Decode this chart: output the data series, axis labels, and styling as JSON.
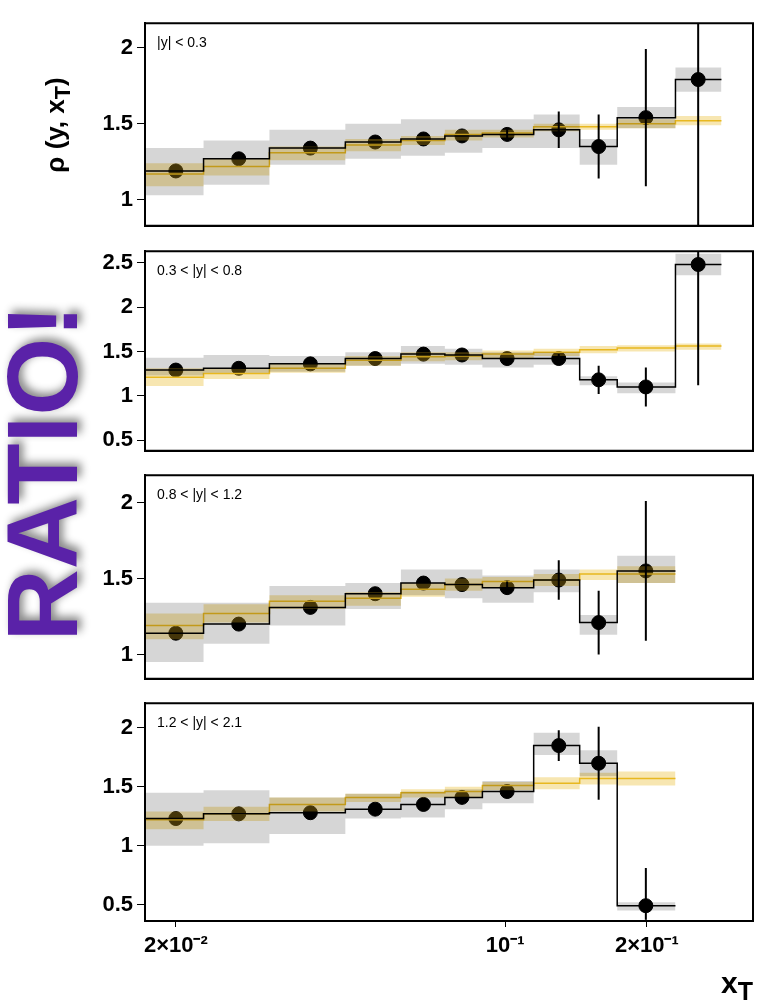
{
  "chart_data": [
    {
      "type": "scatter",
      "ylabel": "ρ (y, x$_{T}$)",
      "annotations": [
        "|y| < 0.3"
      ],
      "log": "x",
      "xlim": [
        0.0172,
        0.336
      ],
      "xticks": [
        {
          "value": 0.02,
          "label": null
        },
        {
          "value": 0.1,
          "label": null
        },
        {
          "value": 0.2,
          "label": null
        }
      ],
      "ylim": [
        0.83,
        2.16
      ],
      "yticks": [
        1,
        1.5,
        2
      ],
      "tick_labels": "y",
      "x": [
        0.02,
        0.0272,
        0.0386,
        0.053,
        0.0671,
        0.081,
        0.101,
        0.13,
        0.158,
        0.199,
        0.257
      ],
      "series": [
        {
          "type": "step",
          "color": "#000000",
          "x": [
            0.0172,
            0.0229,
            0.0316,
            0.0458,
            0.0601,
            0.0745,
            0.0895,
            0.115,
            0.144,
            0.173,
            0.23,
            0.288
          ],
          "values": [
            1.19,
            1.27,
            1.34,
            1.38,
            1.4,
            1.42,
            1.43,
            1.46,
            1.35,
            1.54,
            1.79,
            1.79
          ],
          "lower": [
            1.03,
            1.1,
            1.23,
            1.27,
            1.29,
            1.31,
            1.34,
            1.34,
            1.23,
            1.47,
            1.71,
            1.71
          ],
          "upper": [
            1.34,
            1.39,
            1.46,
            1.5,
            1.53,
            1.53,
            1.53,
            1.56,
            1.4,
            1.61,
            1.87,
            1.87
          ]
        },
        {
          "type": "step",
          "color": "#e8b820",
          "x": [
            0.0172,
            0.0229,
            0.0316,
            0.0458,
            0.0601,
            0.0745,
            0.0895,
            0.115,
            0.144,
            0.173,
            0.23,
            0.288
          ],
          "values": [
            1.17,
            1.22,
            1.31,
            1.36,
            1.39,
            1.43,
            1.44,
            1.48,
            1.48,
            1.5,
            1.52,
            1.52
          ],
          "lower": [
            1.09,
            1.16,
            1.26,
            1.32,
            1.36,
            1.39,
            1.41,
            1.45,
            1.46,
            1.47,
            1.49,
            1.49
          ],
          "upper": [
            1.24,
            1.27,
            1.35,
            1.4,
            1.42,
            1.46,
            1.46,
            1.5,
            1.5,
            1.53,
            1.55,
            1.55
          ]
        },
        {
          "marker": "circle",
          "color": "#000000",
          "values": [
            1.19,
            1.27,
            1.34,
            1.38,
            1.4,
            1.42,
            1.43,
            1.46,
            1.35,
            1.54,
            1.79
          ],
          "errors": [
            null,
            null,
            null,
            null,
            null,
            null,
            0.04,
            0.12,
            0.21,
            0.45,
            [
              0.83,
              2.16
            ]
          ]
        }
      ]
    },
    {
      "type": "scatter",
      "annotations": [
        "0.3 < |y| < 0.8",
        "RATIO!"
      ],
      "log": "x",
      "xlim": [
        0.0172,
        0.336
      ],
      "xticks": [
        {
          "value": 0.02,
          "label": null
        },
        {
          "value": 0.1,
          "label": null
        },
        {
          "value": 0.2,
          "label": null
        }
      ],
      "ylim": [
        0.38,
        2.63
      ],
      "yticks": [
        0.5,
        1,
        1.5,
        2,
        2.5
      ],
      "tick_labels": "y",
      "x": [
        0.02,
        0.0272,
        0.0386,
        0.053,
        0.0671,
        0.081,
        0.101,
        0.13,
        0.158,
        0.199,
        0.257
      ],
      "series": [
        {
          "type": "step",
          "color": "#000000",
          "x": [
            0.0172,
            0.0229,
            0.0316,
            0.0458,
            0.0601,
            0.0745,
            0.0895,
            0.115,
            0.144,
            0.173,
            0.23,
            0.288
          ],
          "values": [
            1.29,
            1.31,
            1.36,
            1.42,
            1.47,
            1.46,
            1.42,
            1.42,
            1.18,
            1.1,
            2.48,
            2.48
          ],
          "lower": [
            1.23,
            1.26,
            1.27,
            1.34,
            1.36,
            1.35,
            1.32,
            1.35,
            1.12,
            1.03,
            2.36,
            2.36
          ],
          "upper": [
            1.43,
            1.46,
            1.45,
            1.49,
            1.56,
            1.53,
            1.49,
            1.49,
            1.22,
            1.15,
            2.6,
            2.6
          ]
        },
        {
          "type": "step",
          "color": "#e8b820",
          "x": [
            0.0172,
            0.0229,
            0.0316,
            0.0458,
            0.0601,
            0.0745,
            0.0895,
            0.115,
            0.144,
            0.173,
            0.23,
            0.288
          ],
          "values": [
            1.21,
            1.25,
            1.31,
            1.4,
            1.44,
            1.45,
            1.47,
            1.49,
            1.52,
            1.54,
            1.56,
            1.56
          ],
          "lower": [
            1.11,
            1.19,
            1.26,
            1.34,
            1.39,
            1.4,
            1.42,
            1.45,
            1.48,
            1.5,
            1.52,
            1.52
          ],
          "upper": [
            1.31,
            1.31,
            1.36,
            1.45,
            1.49,
            1.49,
            1.51,
            1.53,
            1.56,
            1.57,
            1.59,
            1.59
          ]
        },
        {
          "marker": "circle",
          "color": "#000000",
          "values": [
            1.29,
            1.31,
            1.36,
            1.42,
            1.47,
            1.46,
            1.42,
            1.42,
            1.18,
            1.1,
            2.48
          ],
          "errors": [
            null,
            null,
            null,
            null,
            null,
            null,
            null,
            0.05,
            0.16,
            0.22,
            [
              1.12,
              2.63
            ]
          ]
        }
      ]
    },
    {
      "type": "scatter",
      "annotations": [
        "0.8 < |y| < 1.2"
      ],
      "log": "x",
      "xlim": [
        0.0172,
        0.336
      ],
      "xticks": [
        {
          "value": 0.02,
          "label": null
        },
        {
          "value": 0.1,
          "label": null
        },
        {
          "value": 0.2,
          "label": null
        }
      ],
      "ylim": [
        0.84,
        2.18
      ],
      "yticks": [
        1,
        1.5,
        2
      ],
      "tick_labels": "y",
      "x": [
        0.02,
        0.0272,
        0.0386,
        0.053,
        0.0671,
        0.081,
        0.101,
        0.13,
        0.158,
        0.199
      ],
      "series": [
        {
          "type": "step",
          "color": "#000000",
          "x": [
            0.0172,
            0.0229,
            0.0316,
            0.0458,
            0.0601,
            0.0745,
            0.0895,
            0.115,
            0.144,
            0.173,
            0.23
          ],
          "values": [
            1.14,
            1.2,
            1.31,
            1.4,
            1.47,
            1.46,
            1.44,
            1.49,
            1.21,
            1.55,
            1.55
          ],
          "lower": [
            0.95,
            1.07,
            1.19,
            1.3,
            1.39,
            1.37,
            1.34,
            1.41,
            1.13,
            1.47,
            1.47
          ],
          "upper": [
            1.34,
            1.34,
            1.45,
            1.47,
            1.56,
            1.56,
            1.52,
            1.56,
            1.26,
            1.65,
            1.65
          ]
        },
        {
          "type": "step",
          "color": "#e8b820",
          "x": [
            0.0172,
            0.0229,
            0.0316,
            0.0458,
            0.0601,
            0.0745,
            0.0895,
            0.115,
            0.144,
            0.173,
            0.23
          ],
          "values": [
            1.19,
            1.27,
            1.35,
            1.37,
            1.43,
            1.46,
            1.48,
            1.49,
            1.53,
            1.53,
            1.53
          ],
          "lower": [
            1.1,
            1.21,
            1.3,
            1.32,
            1.38,
            1.42,
            1.44,
            1.45,
            1.49,
            1.47,
            1.47
          ],
          "upper": [
            1.27,
            1.33,
            1.39,
            1.41,
            1.47,
            1.5,
            1.51,
            1.53,
            1.56,
            1.58,
            1.58
          ]
        },
        {
          "marker": "circle",
          "color": "#000000",
          "values": [
            1.14,
            1.2,
            1.31,
            1.4,
            1.47,
            1.46,
            1.44,
            1.49,
            1.21,
            1.55
          ],
          "errors": [
            null,
            null,
            null,
            null,
            null,
            null,
            0.04,
            0.13,
            0.21,
            0.46
          ]
        }
      ]
    },
    {
      "type": "scatter",
      "xlabel": "x$_{T}$",
      "annotations": [
        "1.2 < |y| < 2.1"
      ],
      "log": "x",
      "xlim": [
        0.0172,
        0.336
      ],
      "xticks": [
        {
          "value": 0.02,
          "label": "2×10⁻²"
        },
        {
          "value": 0.1,
          "label": "10⁻¹"
        },
        {
          "value": 0.2,
          "label": "2×10⁻¹"
        }
      ],
      "ylim": [
        0.36,
        2.21
      ],
      "yticks": [
        0.5,
        1,
        1.5,
        2
      ],
      "x": [
        0.02,
        0.0272,
        0.0386,
        0.053,
        0.0671,
        0.081,
        0.101,
        0.13,
        0.158,
        0.199
      ],
      "series": [
        {
          "type": "step",
          "color": "#000000",
          "x": [
            0.0172,
            0.0229,
            0.0316,
            0.0458,
            0.0601,
            0.0745,
            0.0895,
            0.115,
            0.144,
            0.173,
            0.23
          ],
          "values": [
            1.23,
            1.27,
            1.28,
            1.31,
            1.35,
            1.41,
            1.46,
            1.85,
            1.7,
            0.49,
            0.49
          ],
          "lower": [
            1.0,
            1.02,
            1.1,
            1.23,
            1.24,
            1.31,
            1.36,
            1.77,
            1.59,
            0.45,
            0.45
          ],
          "upper": [
            1.45,
            1.47,
            1.41,
            1.44,
            1.46,
            1.48,
            1.55,
            1.96,
            1.81,
            0.52,
            0.52
          ]
        },
        {
          "type": "step",
          "color": "#e8b820",
          "x": [
            0.0172,
            0.0229,
            0.0316,
            0.0458,
            0.0601,
            0.0745,
            0.0895,
            0.115,
            0.144,
            0.173,
            0.23
          ],
          "values": [
            1.22,
            1.27,
            1.35,
            1.41,
            1.45,
            1.46,
            1.51,
            1.53,
            1.57,
            1.57,
            1.57
          ],
          "lower": [
            1.14,
            1.21,
            1.29,
            1.37,
            1.41,
            1.41,
            1.47,
            1.48,
            1.52,
            1.51,
            1.51
          ],
          "upper": [
            1.29,
            1.33,
            1.41,
            1.44,
            1.48,
            1.5,
            1.54,
            1.58,
            1.62,
            1.63,
            1.63
          ]
        },
        {
          "marker": "circle",
          "color": "#000000",
          "values": [
            1.23,
            1.27,
            1.28,
            1.31,
            1.35,
            1.41,
            1.46,
            1.85,
            1.7,
            0.49
          ],
          "errors": [
            null,
            null,
            null,
            null,
            null,
            null,
            null,
            0.13,
            0.31,
            [
              0.37,
              0.81
            ]
          ]
        }
      ]
    }
  ]
}
